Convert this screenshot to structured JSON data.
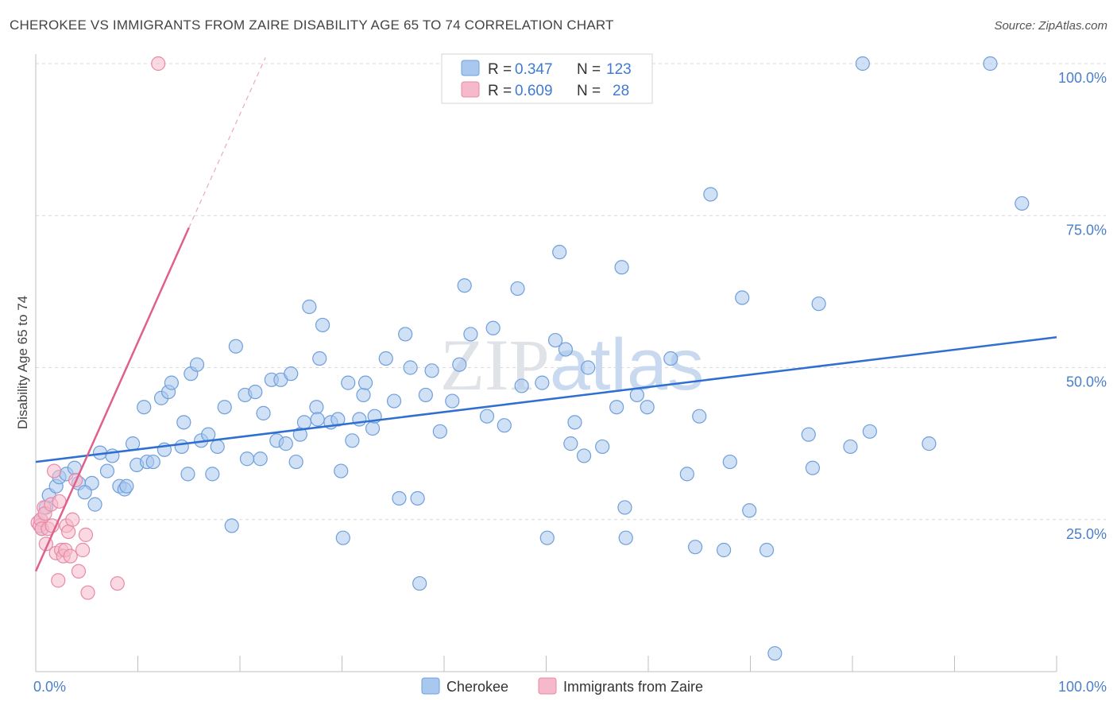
{
  "title": "CHEROKEE VS IMMIGRANTS FROM ZAIRE DISABILITY AGE 65 TO 74 CORRELATION CHART",
  "source": "Source: ZipAtlas.com",
  "watermark": "ZIPatlas",
  "colors": {
    "blue_fill": "#a9c8ef",
    "blue_stroke": "#6f9fdc",
    "blue_line": "#2f6fd0",
    "pink_fill": "#f6b9cb",
    "pink_stroke": "#e889a6",
    "pink_line": "#e0608c",
    "grid": "#d9d9d9",
    "tick_text": "#4a7fc9"
  },
  "legend": {
    "rows": [
      {
        "r_label": "R = ",
        "r_value": "0.347",
        "n_label": "N = ",
        "n_value": "123"
      },
      {
        "r_label": "R = ",
        "r_value": "0.609",
        "n_label": "N = ",
        "n_value": "28"
      }
    ]
  },
  "bottom_legend": [
    "Cherokee",
    "Immigrants from Zaire"
  ],
  "chart_data": {
    "type": "scatter",
    "title": "CHEROKEE VS IMMIGRANTS FROM ZAIRE DISABILITY AGE 65 TO 74 CORRELATION CHART",
    "xlabel": "",
    "ylabel": "Disability Age 65 to 74",
    "xlim": [
      0,
      100
    ],
    "ylim": [
      0,
      100
    ],
    "x_tick_labels": [
      "0.0%",
      "100.0%"
    ],
    "y_tick_labels": [
      "25.0%",
      "50.0%",
      "75.0%",
      "100.0%"
    ],
    "y_tick_values": [
      25,
      50,
      75,
      100
    ],
    "series": [
      {
        "name": "Cherokee",
        "R": 0.347,
        "N": 123,
        "trend": {
          "x": [
            0,
            100
          ],
          "y": [
            34.5,
            55.0
          ]
        },
        "points": [
          [
            0.5,
            25
          ],
          [
            0.6,
            23.5
          ],
          [
            1,
            27
          ],
          [
            1.3,
            29
          ],
          [
            2,
            30.5
          ],
          [
            2.3,
            32
          ],
          [
            3,
            32.5
          ],
          [
            3.8,
            33.5
          ],
          [
            4.2,
            31
          ],
          [
            5.5,
            31
          ],
          [
            4.8,
            29.5
          ],
          [
            5.8,
            27.5
          ],
          [
            6.3,
            36
          ],
          [
            7,
            33
          ],
          [
            7.5,
            35.5
          ],
          [
            8.2,
            30.5
          ],
          [
            8.7,
            30
          ],
          [
            8.9,
            30.5
          ],
          [
            9.5,
            37.5
          ],
          [
            9.9,
            34
          ],
          [
            10.6,
            43.5
          ],
          [
            10.9,
            34.5
          ],
          [
            11.5,
            34.5
          ],
          [
            12.3,
            45
          ],
          [
            12.6,
            36.5
          ],
          [
            13,
            46
          ],
          [
            13.3,
            47.5
          ],
          [
            14.3,
            37
          ],
          [
            14.5,
            41
          ],
          [
            14.9,
            32.5
          ],
          [
            15.2,
            49
          ],
          [
            15.8,
            50.5
          ],
          [
            16.2,
            38
          ],
          [
            16.9,
            39
          ],
          [
            17.3,
            32.5
          ],
          [
            17.8,
            37
          ],
          [
            18.5,
            43.5
          ],
          [
            19.2,
            24
          ],
          [
            19.6,
            53.5
          ],
          [
            20.5,
            45.5
          ],
          [
            20.7,
            35
          ],
          [
            21.5,
            46
          ],
          [
            22,
            35
          ],
          [
            22.3,
            42.5
          ],
          [
            23.1,
            48
          ],
          [
            23.6,
            38
          ],
          [
            24,
            48
          ],
          [
            24.5,
            37.5
          ],
          [
            25,
            49
          ],
          [
            25.5,
            34.5
          ],
          [
            25.9,
            39
          ],
          [
            26.3,
            41
          ],
          [
            26.8,
            60
          ],
          [
            27.5,
            43.5
          ],
          [
            27.6,
            41.5
          ],
          [
            27.8,
            51.5
          ],
          [
            28.1,
            57
          ],
          [
            28.9,
            41
          ],
          [
            29.6,
            41.5
          ],
          [
            29.9,
            33
          ],
          [
            30.1,
            22
          ],
          [
            30.6,
            47.5
          ],
          [
            31,
            38
          ],
          [
            31.7,
            41.5
          ],
          [
            32.1,
            45.5
          ],
          [
            32.3,
            47.5
          ],
          [
            33,
            40
          ],
          [
            33.2,
            42
          ],
          [
            34.3,
            51.5
          ],
          [
            35.1,
            44.5
          ],
          [
            35.6,
            28.5
          ],
          [
            36.2,
            55.5
          ],
          [
            36.7,
            50
          ],
          [
            37.4,
            28.5
          ],
          [
            37.6,
            14.5
          ],
          [
            38.2,
            45.5
          ],
          [
            38.8,
            49.5
          ],
          [
            39.6,
            39.5
          ],
          [
            40.8,
            44.5
          ],
          [
            41.5,
            50.5
          ],
          [
            42,
            63.5
          ],
          [
            42.6,
            55.5
          ],
          [
            44.2,
            42
          ],
          [
            44.8,
            56.5
          ],
          [
            45.9,
            40.5
          ],
          [
            47.2,
            63
          ],
          [
            47.6,
            47
          ],
          [
            49.6,
            47.5
          ],
          [
            50.1,
            22
          ],
          [
            50.9,
            54.5
          ],
          [
            51.3,
            69
          ],
          [
            51.9,
            53
          ],
          [
            52.4,
            37.5
          ],
          [
            52.8,
            41
          ],
          [
            53.7,
            35.5
          ],
          [
            54.1,
            50
          ],
          [
            55.5,
            37
          ],
          [
            56.9,
            43.5
          ],
          [
            57.4,
            66.5
          ],
          [
            57.7,
            27
          ],
          [
            57.8,
            22
          ],
          [
            58.9,
            45.5
          ],
          [
            59.9,
            43.5
          ],
          [
            62.2,
            51.5
          ],
          [
            63.8,
            32.5
          ],
          [
            64.6,
            20.5
          ],
          [
            65,
            42
          ],
          [
            66.1,
            78.5
          ],
          [
            67.4,
            20
          ],
          [
            68,
            34.5
          ],
          [
            69.2,
            61.5
          ],
          [
            69.9,
            26.5
          ],
          [
            71.6,
            20
          ],
          [
            72.4,
            3
          ],
          [
            75.7,
            39
          ],
          [
            76.1,
            33.5
          ],
          [
            76.7,
            60.5
          ],
          [
            79.8,
            37
          ],
          [
            81,
            100
          ],
          [
            81.7,
            39.5
          ],
          [
            87.5,
            37.5
          ],
          [
            93.5,
            100
          ],
          [
            96.6,
            77
          ]
        ]
      },
      {
        "name": "Immigrants from Zaire",
        "R": 0.609,
        "N": 28,
        "trend_solid": {
          "x": [
            0,
            15
          ],
          "y": [
            16.5,
            73
          ]
        },
        "trend_dashed": {
          "x": [
            15,
            22.5
          ],
          "y": [
            73,
            101
          ]
        },
        "points": [
          [
            0.2,
            24.5
          ],
          [
            0.4,
            24
          ],
          [
            0.5,
            25
          ],
          [
            0.6,
            23.5
          ],
          [
            0.8,
            27
          ],
          [
            0.9,
            26
          ],
          [
            1,
            21
          ],
          [
            1.2,
            23.5
          ],
          [
            1.5,
            27.5
          ],
          [
            1.6,
            24
          ],
          [
            1.8,
            33
          ],
          [
            2,
            19.5
          ],
          [
            2.2,
            15
          ],
          [
            2.3,
            28
          ],
          [
            2.5,
            20
          ],
          [
            2.7,
            19
          ],
          [
            2.9,
            20
          ],
          [
            3,
            24
          ],
          [
            3.2,
            23
          ],
          [
            3.4,
            19
          ],
          [
            3.6,
            25
          ],
          [
            3.9,
            31.5
          ],
          [
            4.2,
            16.5
          ],
          [
            4.6,
            20
          ],
          [
            4.9,
            22.5
          ],
          [
            5.1,
            13
          ],
          [
            8,
            14.5
          ],
          [
            12,
            100
          ]
        ]
      }
    ]
  }
}
